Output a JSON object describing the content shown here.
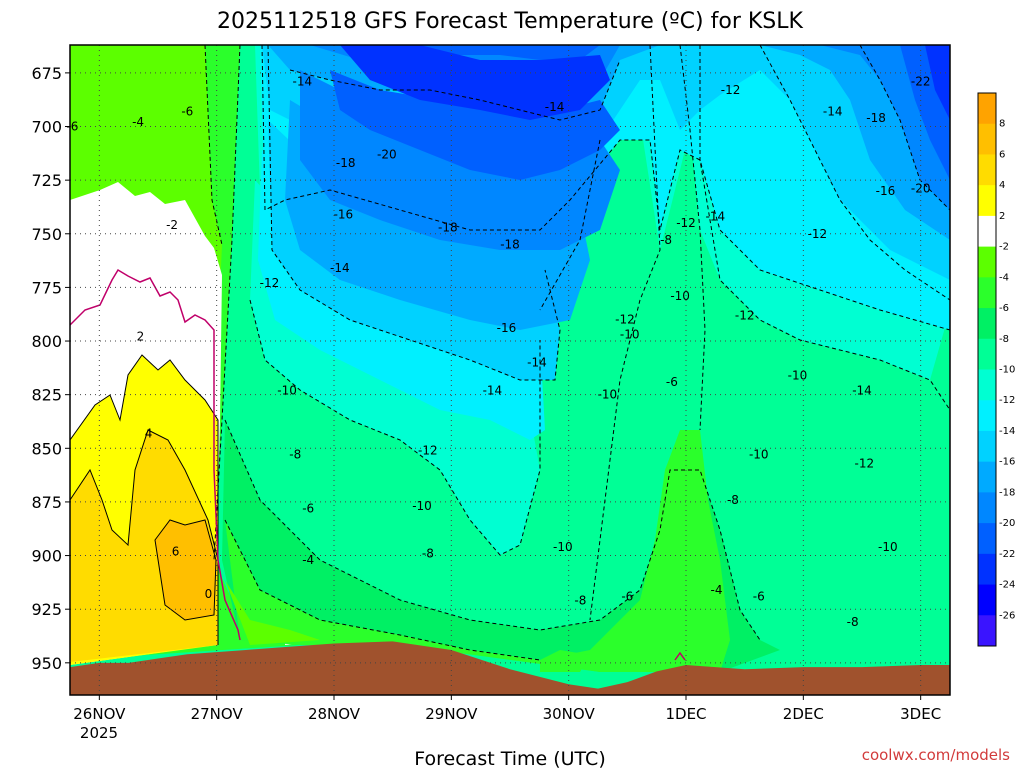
{
  "chart_data": {
    "type": "heatmap",
    "title": "2025112518 GFS Forecast Temperature (ºC) for KSLK",
    "xlabel": "Forecast Time (UTC)",
    "ylabel": "",
    "source": "coolwx.com/models",
    "x_ticks": [
      {
        "label": "26NOV",
        "day": 26
      },
      {
        "label": "27NOV",
        "day": 27
      },
      {
        "label": "28NOV",
        "day": 28
      },
      {
        "label": "29NOV",
        "day": 29
      },
      {
        "label": "30NOV",
        "day": 30
      },
      {
        "label": "1DEC",
        "day": 31
      },
      {
        "label": "2DEC",
        "day": 32
      },
      {
        "label": "3DEC",
        "day": 33
      }
    ],
    "x_year_label": "2025",
    "xlim": [
      25.75,
      33.25
    ],
    "y_ticks": [
      675,
      700,
      725,
      750,
      775,
      800,
      825,
      850,
      875,
      900,
      925,
      950
    ],
    "ylim": [
      662,
      965
    ],
    "colorbar": {
      "labels": [
        "8",
        "6",
        "4",
        "2",
        "-2",
        "-4",
        "-6",
        "-8",
        "-10",
        "-12",
        "-14",
        "-16",
        "-18",
        "-20",
        "-22",
        "-24",
        "-26"
      ],
      "colors": [
        "#ffa300",
        "#ffbf00",
        "#ffdc00",
        "#ffff00",
        "#ffffff",
        "#5cff00",
        "#2bff2b",
        "#00f064",
        "#00ff96",
        "#00ffd2",
        "#00f0ff",
        "#00d2ff",
        "#00aaff",
        "#0087ff",
        "#0060ff",
        "#0032ff",
        "#0000ff",
        "#3a14ff"
      ]
    },
    "series": [
      {
        "x": [
          25.75,
          26.0,
          26.25,
          26.5,
          26.75,
          27.0,
          27.25,
          27.5,
          27.75,
          28.0,
          28.5,
          29.0,
          29.5,
          30.0,
          30.25,
          30.5,
          30.75,
          31.0,
          31.25,
          31.5,
          32.0,
          32.5,
          33.0,
          33.25
        ],
        "y": [
          952,
          950,
          950,
          948,
          946,
          945,
          944,
          943,
          942,
          941,
          940,
          944,
          953,
          960,
          962,
          959,
          954,
          951,
          952,
          953,
          952,
          952,
          951,
          951
        ]
      }
    ],
    "contour_labels": [
      {
        "t": "-6",
        "x": 25.77,
        "y": 700
      },
      {
        "t": "-4",
        "x": 26.33,
        "y": 698
      },
      {
        "t": "-6",
        "x": 26.75,
        "y": 693
      },
      {
        "t": "-2",
        "x": 26.62,
        "y": 746
      },
      {
        "t": "2",
        "x": 26.35,
        "y": 798
      },
      {
        "t": "4",
        "x": 26.42,
        "y": 843
      },
      {
        "t": "6",
        "x": 26.65,
        "y": 898
      },
      {
        "t": "0",
        "x": 26.93,
        "y": 918
      },
      {
        "t": "-14",
        "x": 27.73,
        "y": 679
      },
      {
        "t": "-18",
        "x": 28.1,
        "y": 717
      },
      {
        "t": "-20",
        "x": 28.45,
        "y": 713
      },
      {
        "t": "-16",
        "x": 28.08,
        "y": 741
      },
      {
        "t": "-18",
        "x": 28.97,
        "y": 747
      },
      {
        "t": "-18",
        "x": 29.5,
        "y": 755
      },
      {
        "t": "-14",
        "x": 28.05,
        "y": 766
      },
      {
        "t": "-12",
        "x": 27.45,
        "y": 773
      },
      {
        "t": "-14",
        "x": 29.88,
        "y": 691
      },
      {
        "t": "-12",
        "x": 31.38,
        "y": 683
      },
      {
        "t": "-14",
        "x": 32.25,
        "y": 693
      },
      {
        "t": "-18",
        "x": 32.62,
        "y": 696
      },
      {
        "t": "-22",
        "x": 33.0,
        "y": 679
      },
      {
        "t": "-16",
        "x": 32.7,
        "y": 730
      },
      {
        "t": "-20",
        "x": 33.0,
        "y": 729
      },
      {
        "t": "-12",
        "x": 31.0,
        "y": 745
      },
      {
        "t": "-14",
        "x": 31.25,
        "y": 742
      },
      {
        "t": "-12",
        "x": 32.12,
        "y": 750
      },
      {
        "t": "-8",
        "x": 30.83,
        "y": 753
      },
      {
        "t": "-10",
        "x": 30.95,
        "y": 779
      },
      {
        "t": "-12",
        "x": 30.48,
        "y": 790
      },
      {
        "t": "-12",
        "x": 31.5,
        "y": 788
      },
      {
        "t": "-10",
        "x": 30.52,
        "y": 797
      },
      {
        "t": "-16",
        "x": 29.47,
        "y": 794
      },
      {
        "t": "-14",
        "x": 29.73,
        "y": 810
      },
      {
        "t": "-10",
        "x": 27.6,
        "y": 823
      },
      {
        "t": "-14",
        "x": 29.35,
        "y": 823
      },
      {
        "t": "-10",
        "x": 30.33,
        "y": 825
      },
      {
        "t": "-6",
        "x": 30.88,
        "y": 819
      },
      {
        "t": "-10",
        "x": 31.95,
        "y": 816
      },
      {
        "t": "-14",
        "x": 32.5,
        "y": 823
      },
      {
        "t": "-12",
        "x": 28.8,
        "y": 851
      },
      {
        "t": "-8",
        "x": 27.67,
        "y": 853
      },
      {
        "t": "-10",
        "x": 31.62,
        "y": 853
      },
      {
        "t": "-12",
        "x": 32.52,
        "y": 857
      },
      {
        "t": "-6",
        "x": 27.78,
        "y": 878
      },
      {
        "t": "-10",
        "x": 28.75,
        "y": 877
      },
      {
        "t": "-8",
        "x": 31.4,
        "y": 874
      },
      {
        "t": "-10",
        "x": 29.95,
        "y": 896
      },
      {
        "t": "-8",
        "x": 28.8,
        "y": 899
      },
      {
        "t": "-4",
        "x": 27.78,
        "y": 902
      },
      {
        "t": "-10",
        "x": 32.72,
        "y": 896
      },
      {
        "t": "-4",
        "x": 31.26,
        "y": 916
      },
      {
        "t": "-6",
        "x": 31.62,
        "y": 919
      },
      {
        "t": "-8",
        "x": 30.1,
        "y": 921
      },
      {
        "t": "-6",
        "x": 30.5,
        "y": 919
      },
      {
        "t": "-8",
        "x": 32.42,
        "y": 931
      }
    ]
  }
}
